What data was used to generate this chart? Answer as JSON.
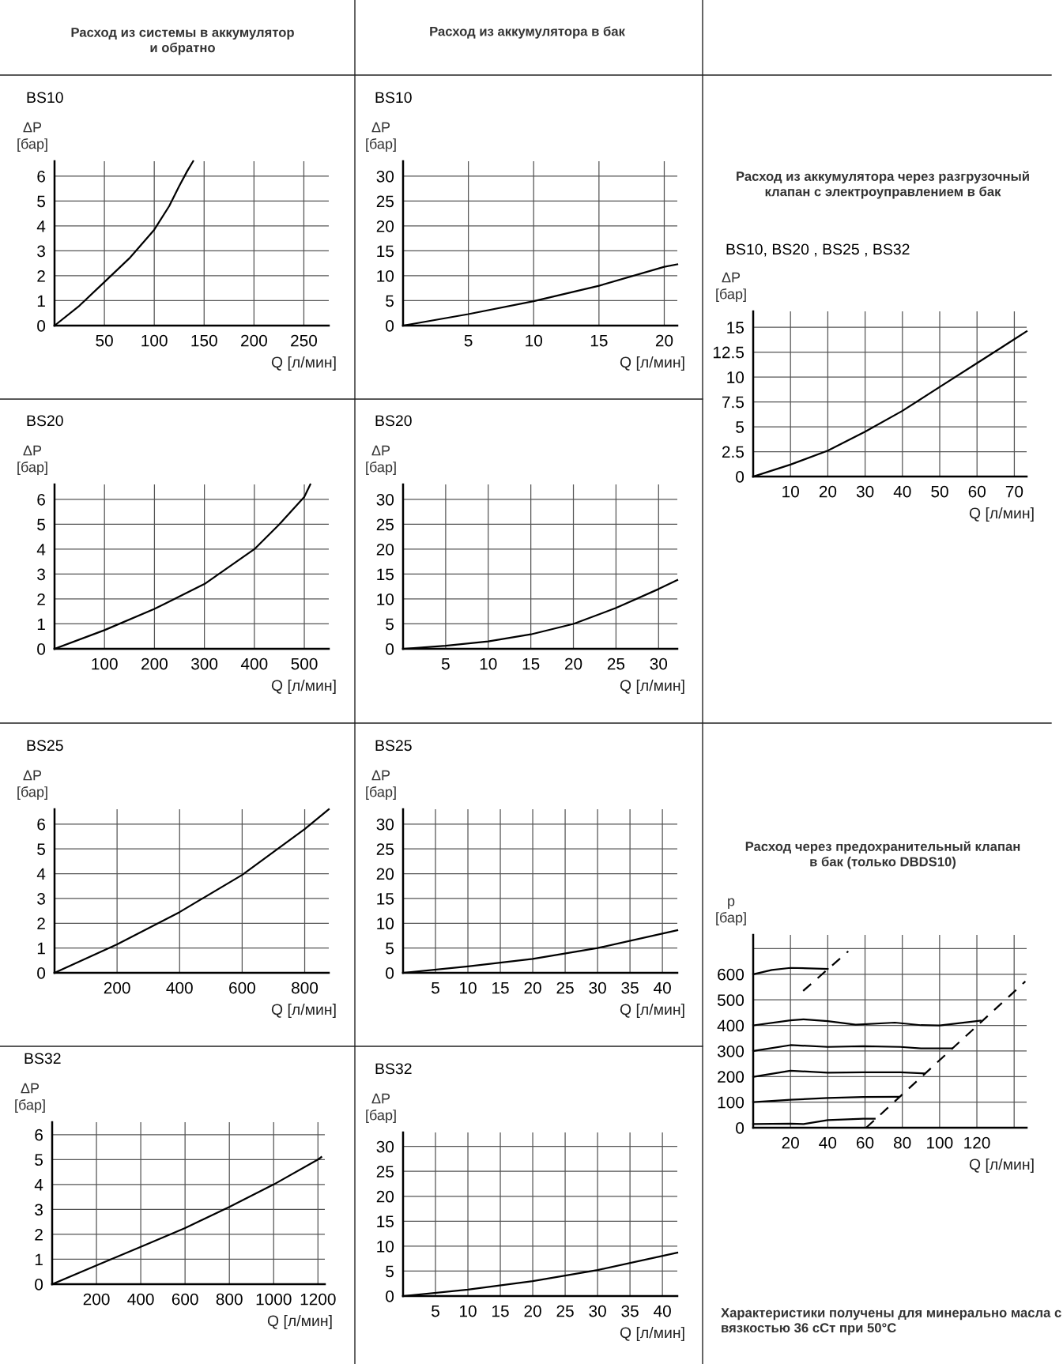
{
  "chart_data": [
    {
      "type": "line",
      "title": "BS10",
      "ylabel": "ΔP\n[бар]",
      "xlabel": "Q [л/мин]",
      "annotations": [
        "Расход из системы в аккумулятор\nи обратно"
      ],
      "xlim": [
        0,
        275
      ],
      "xticks": [
        50,
        100,
        150,
        200,
        250
      ],
      "ylim": [
        0,
        6.6
      ],
      "yticks": [
        0,
        1,
        2,
        3,
        4,
        5,
        6
      ],
      "grid": true,
      "color": "#000000",
      "x": [
        0,
        25,
        50,
        75,
        100,
        115,
        125,
        133,
        139
      ],
      "values": [
        0,
        0.8,
        1.75,
        2.7,
        3.85,
        4.8,
        5.6,
        6.2,
        6.6
      ]
    },
    {
      "type": "line",
      "title": "BS10",
      "ylabel": "ΔP\n[бар]",
      "xlabel": "Q [л/мин]",
      "annotations": [
        "Расход из аккумулятора в бак"
      ],
      "xlim": [
        0,
        21
      ],
      "xticks": [
        5,
        10,
        15,
        20
      ],
      "ylim": [
        0,
        33
      ],
      "yticks": [
        0,
        5,
        10,
        15,
        20,
        25,
        30
      ],
      "grid": true,
      "color": "#000000",
      "x": [
        0,
        5,
        10,
        15,
        20,
        21
      ],
      "values": [
        0,
        2.3,
        4.9,
        8,
        11.8,
        12.3
      ]
    },
    {
      "type": "line",
      "title": "Расход из аккумулятора через разгрузочный\nклапан с электроуправлением в бак",
      "subtitle": "BS10, BS20 , BS25 , BS32",
      "ylabel": "ΔP\n[бар]",
      "xlabel": "Q [л/мин]",
      "xlim": [
        0,
        73.3
      ],
      "xticks": [
        10,
        20,
        30,
        40,
        50,
        60,
        70
      ],
      "ylim": [
        0,
        16.6
      ],
      "yticks": [
        0,
        2.5,
        5,
        7.5,
        10,
        12.5,
        15
      ],
      "grid": true,
      "color": "#000000",
      "x": [
        0,
        10,
        20,
        30,
        40,
        50,
        60,
        70,
        73.3
      ],
      "values": [
        0,
        1.2,
        2.6,
        4.5,
        6.6,
        9,
        11.4,
        13.8,
        14.6
      ]
    },
    {
      "type": "line",
      "title": "BS20",
      "ylabel": "ΔP\n[бар]",
      "xlabel": "Q [л/мин]",
      "xlim": [
        0,
        549
      ],
      "xticks": [
        100,
        200,
        300,
        400,
        500
      ],
      "ylim": [
        0,
        6.6
      ],
      "yticks": [
        0,
        1,
        2,
        3,
        4,
        5,
        6
      ],
      "grid": true,
      "color": "#000000",
      "x": [
        0,
        100,
        200,
        300,
        400,
        450,
        500,
        512
      ],
      "values": [
        0,
        0.75,
        1.6,
        2.6,
        4.0,
        5.0,
        6.1,
        6.6
      ]
    },
    {
      "type": "line",
      "title": "BS20",
      "ylabel": "ΔP\n[бар]",
      "xlabel": "Q [л/мин]",
      "xlim": [
        0,
        32.2
      ],
      "xticks": [
        5,
        10,
        15,
        20,
        25,
        30
      ],
      "ylim": [
        0,
        33
      ],
      "yticks": [
        0,
        5,
        10,
        15,
        20,
        25,
        30
      ],
      "grid": true,
      "color": "#000000",
      "x": [
        0,
        5,
        10,
        15,
        20,
        25,
        30,
        32.2
      ],
      "values": [
        0,
        0.6,
        1.5,
        2.9,
        5,
        8.2,
        12,
        13.8
      ]
    },
    {
      "type": "line",
      "title": "BS25",
      "ylabel": "ΔP\n[бар]",
      "xlabel": "Q [л/мин]",
      "xlim": [
        0,
        877
      ],
      "xticks": [
        200,
        400,
        600,
        800
      ],
      "ylim": [
        0,
        6.6
      ],
      "yticks": [
        0,
        1,
        2,
        3,
        4,
        5,
        6
      ],
      "grid": true,
      "color": "#000000",
      "x": [
        0,
        200,
        400,
        600,
        800,
        877
      ],
      "values": [
        0,
        1.15,
        2.45,
        3.95,
        5.8,
        6.6
      ]
    },
    {
      "type": "line",
      "title": "BS25",
      "ylabel": "ΔP\n[бар]",
      "xlabel": "Q [л/мин]",
      "xlim": [
        0,
        42.3
      ],
      "xticks": [
        5,
        10,
        15,
        20,
        25,
        30,
        35,
        40
      ],
      "ylim": [
        0,
        33
      ],
      "yticks": [
        0,
        5,
        10,
        15,
        20,
        25,
        30
      ],
      "grid": true,
      "color": "#000000",
      "x": [
        0,
        10,
        20,
        30,
        42.3
      ],
      "values": [
        0,
        1.3,
        2.8,
        5,
        8.6
      ]
    },
    {
      "type": "line",
      "title": "Расход через предохранительный клапан\nв бак (только DBDS10)",
      "ylabel": "p\n[бар]",
      "xlabel": "Q [л/мин]",
      "annotations": [
        "Характеристики получены для минерально масла с вязкостью 36 сСт при 50°C"
      ],
      "xlim": [
        0,
        146.7
      ],
      "xticks": [
        20,
        40,
        60,
        80,
        100,
        120,
        {
          "value": 140,
          "label": null
        }
      ],
      "ylim": [
        0,
        754
      ],
      "yticks": [
        0,
        100,
        200,
        300,
        400,
        500,
        600,
        {
          "value": 700,
          "label": null
        }
      ],
      "grid": true,
      "series": [
        {
          "color": "#000000",
          "x": [
            0,
            10,
            20,
            30,
            40
          ],
          "values": [
            600,
            617,
            625,
            623,
            621
          ]
        },
        {
          "color": "#000000",
          "x": [
            0,
            20,
            27,
            40,
            55,
            76,
            90,
            100,
            122
          ],
          "values": [
            400,
            420,
            424,
            417,
            403,
            411,
            401,
            400,
            419
          ]
        },
        {
          "color": "#000000",
          "x": [
            0,
            20,
            40,
            59,
            79,
            90,
            106.8
          ],
          "values": [
            300,
            323,
            316,
            319,
            316,
            310,
            310
          ]
        },
        {
          "color": "#000000",
          "x": [
            0,
            20,
            40,
            59,
            79,
            92
          ],
          "values": [
            199,
            223,
            215,
            217,
            217,
            212
          ]
        },
        {
          "color": "#000000",
          "x": [
            0,
            20,
            40,
            59,
            77.9
          ],
          "values": [
            100,
            109,
            116,
            120,
            121
          ]
        },
        {
          "color": "#000000",
          "x": [
            0,
            20,
            27,
            40,
            59,
            65.2
          ],
          "values": [
            14,
            16,
            14,
            30,
            35,
            35
          ]
        },
        {
          "color": "#000000",
          "line_style": "dashed",
          "x": [
            26.8,
            51
          ],
          "values": [
            535,
            690
          ]
        },
        {
          "color": "#000000",
          "line_style": "dashed",
          "x": [
            60.6,
            146
          ],
          "values": [
            0,
            572
          ]
        }
      ]
    },
    {
      "type": "line",
      "title": "BS32",
      "ylabel": "ΔP\n[бар]",
      "xlabel": "Q [л/мин]",
      "xlim": [
        0,
        1231
      ],
      "xticks": [
        200,
        400,
        600,
        800,
        1000,
        1200
      ],
      "ylim": [
        0,
        6.5
      ],
      "yticks": [
        0,
        1,
        2,
        3,
        4,
        5,
        6
      ],
      "grid": true,
      "color": "#000000",
      "x": [
        0,
        200,
        400,
        600,
        800,
        1000,
        1200,
        1215
      ],
      "values": [
        0,
        0.75,
        1.5,
        2.25,
        3.1,
        4.0,
        5.0,
        5.1
      ]
    },
    {
      "type": "line",
      "title": "BS32",
      "ylabel": "ΔP\n[бар]",
      "xlabel": "Q [л/мин]",
      "xlim": [
        0,
        42.3
      ],
      "xticks": [
        5,
        10,
        15,
        20,
        25,
        30,
        35,
        40
      ],
      "ylim": [
        0,
        32.8
      ],
      "yticks": [
        0,
        5,
        10,
        15,
        20,
        25,
        30
      ],
      "grid": true,
      "color": "#000000",
      "x": [
        0,
        10,
        20,
        30,
        42.3
      ],
      "values": [
        0,
        1.3,
        3,
        5.2,
        8.7
      ]
    }
  ]
}
